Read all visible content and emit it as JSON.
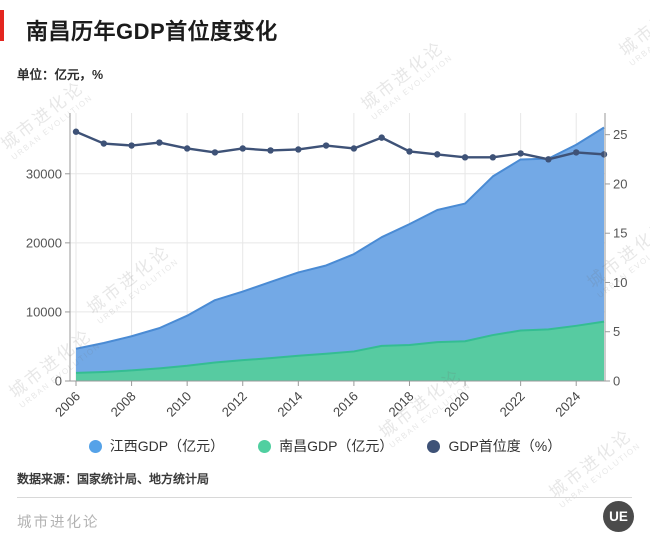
{
  "header": {
    "title": "南昌历年GDP首位度变化",
    "unit_label": "单位：亿元，%"
  },
  "chart_data": {
    "type": "area",
    "title": "南昌历年GDP首位度变化",
    "unit": "亿元，%",
    "x": [
      "2006",
      "2007",
      "2008",
      "2009",
      "2010",
      "2011",
      "2012",
      "2013",
      "2014",
      "2015",
      "2016",
      "2017",
      "2018",
      "2019",
      "2020",
      "2021",
      "2022",
      "2023",
      "2024",
      "2025"
    ],
    "x_tick_labels": [
      "2006",
      "2008",
      "2010",
      "2012",
      "2014",
      "2016",
      "2018",
      "2020",
      "2022",
      "2024"
    ],
    "series": [
      {
        "name": "江西GDP（亿元）",
        "type": "area",
        "axis": "left",
        "fill": "#73A9E6",
        "stroke": "#4A8BD4",
        "values": [
          4670,
          5500,
          6480,
          7655,
          9451,
          11703,
          12949,
          14339,
          15715,
          16724,
          18364,
          20818,
          22716,
          24758,
          25692,
          29620,
          32075,
          32200,
          34202,
          36700
        ]
      },
      {
        "name": "南昌GDP（亿元）",
        "type": "area",
        "axis": "left",
        "fill": "#57CBA1",
        "stroke": "#34BD92",
        "values": [
          1170,
          1310,
          1530,
          1830,
          2200,
          2680,
          3020,
          3310,
          3650,
          3950,
          4280,
          5080,
          5220,
          5620,
          5750,
          6650,
          7310,
          7470,
          7990,
          8600
        ]
      },
      {
        "name": "GDP首位度（%）",
        "type": "line",
        "axis": "right",
        "stroke": "#3E5277",
        "values": [
          25.3,
          24.1,
          23.9,
          24.2,
          23.6,
          23.2,
          23.6,
          23.4,
          23.5,
          23.9,
          23.6,
          24.7,
          23.3,
          23.0,
          22.7,
          22.7,
          23.1,
          22.5,
          23.2,
          23.0
        ]
      }
    ],
    "left_axis": {
      "ticks": [
        0,
        10000,
        20000,
        30000
      ],
      "max_value": 38800
    },
    "right_axis": {
      "ticks": [
        0,
        5,
        10,
        15,
        20,
        25
      ],
      "max_value": 27.2
    },
    "grid": true,
    "legend_position": "bottom"
  },
  "legend": {
    "items": [
      {
        "label": "江西GDP（亿元）",
        "color": "#55A2E8"
      },
      {
        "label": "南昌GDP（亿元）",
        "color": "#50CFA0"
      },
      {
        "label": "GDP首位度（%）",
        "color": "#3E5277"
      }
    ]
  },
  "footer": {
    "source": "数据来源：国家统计局、地方统计局",
    "brand": "城市进化论",
    "logo_text": "UE"
  },
  "watermark": {
    "cn": "城市进化论",
    "en": "URBAN EVOLUTION"
  },
  "colors": {
    "accent_red": "#E3261F",
    "jiangxi_blue": "#73A9E6",
    "nanchang_green": "#57CBA1",
    "primacy_navy": "#3E5277",
    "axis_line": "#9A9A9A",
    "grid_line": "#E7E7E7"
  }
}
